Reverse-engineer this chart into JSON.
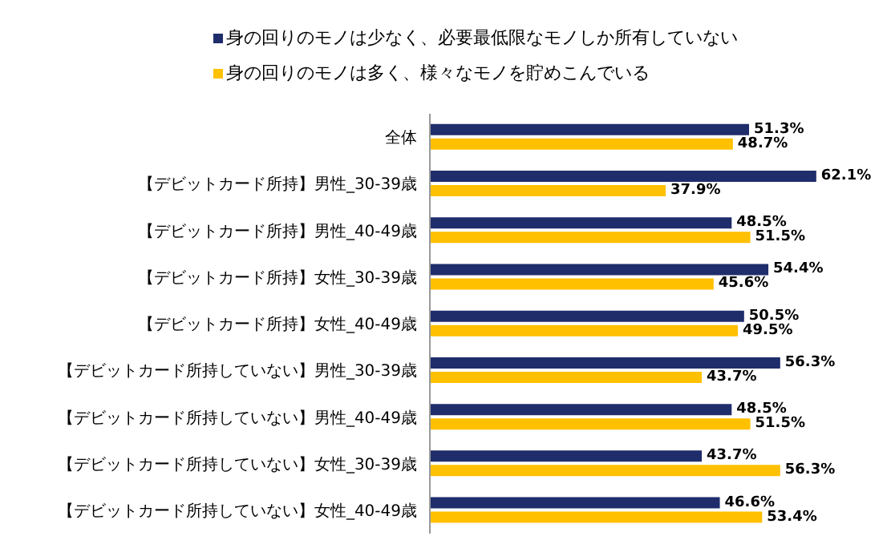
{
  "chart_data": {
    "type": "bar",
    "orientation": "horizontal",
    "legend": "top left",
    "categories": [
      "全体",
      "【デビットカード所持】男性_30-39歳",
      "【デビットカード所持】男性_40-49歳",
      "【デビットカード所持】女性_30-39歳",
      "【デビットカード所持】女性_40-49歳",
      "【デビットカード所持していない】男性_30-39歳",
      "【デビットカード所持していない】男性_40-49歳",
      "【デビットカード所持していない】女性_30-39歳",
      "【デビットカード所持していない】女性_40-49歳"
    ],
    "series": [
      {
        "name": "身の回りのモノは少なく、必要最低限なモノしか所有していない",
        "color": "#1f2d6b",
        "values": [
          51.3,
          62.1,
          48.5,
          54.4,
          50.5,
          56.3,
          48.5,
          43.7,
          46.6
        ],
        "value_labels": [
          "51.3%",
          "62.1%",
          "48.5%",
          "54.4%",
          "50.5%",
          "56.3%",
          "48.5%",
          "43.7%",
          "46.6%"
        ]
      },
      {
        "name": "身の回りのモノは多く、様々なモノを貯めこんでいる",
        "color": "#ffc000",
        "values": [
          48.7,
          37.9,
          51.5,
          45.6,
          49.5,
          43.7,
          51.5,
          56.3,
          53.4
        ],
        "value_labels": [
          "48.7%",
          "37.9%",
          "51.5%",
          "45.6%",
          "49.5%",
          "43.7%",
          "51.5%",
          "56.3%",
          "53.4%"
        ]
      }
    ]
  }
}
